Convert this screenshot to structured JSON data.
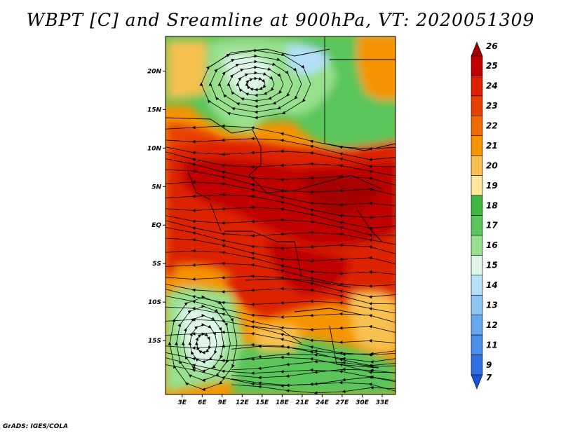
{
  "title": "WBPT [C] and Sreamline at 900hPa, VT: 2020051309",
  "credit": "GrADS: IGES/COLA",
  "map": {
    "lat_range": [
      -22,
      24.5
    ],
    "lon_range": [
      0.5,
      35
    ],
    "lat_ticks": [
      {
        "lat": 20,
        "label": "20N"
      },
      {
        "lat": 15,
        "label": "15N"
      },
      {
        "lat": 10,
        "label": "10N"
      },
      {
        "lat": 5,
        "label": "5N"
      },
      {
        "lat": 0,
        "label": "EQ"
      },
      {
        "lat": -5,
        "label": "5S"
      },
      {
        "lat": -10,
        "label": "10S"
      },
      {
        "lat": -15,
        "label": "15S"
      }
    ],
    "lon_ticks": [
      {
        "lon": 3,
        "label": "3E"
      },
      {
        "lon": 6,
        "label": "6E"
      },
      {
        "lon": 9,
        "label": "9E"
      },
      {
        "lon": 12,
        "label": "12E"
      },
      {
        "lon": 15,
        "label": "15E"
      },
      {
        "lon": 18,
        "label": "18E"
      },
      {
        "lon": 21,
        "label": "21E"
      },
      {
        "lon": 24,
        "label": "24E"
      },
      {
        "lon": 27,
        "label": "27E"
      },
      {
        "lon": 30,
        "label": "30E"
      },
      {
        "lon": 33,
        "label": "33E"
      }
    ]
  },
  "colorbar": {
    "levels": [
      {
        "label": "26",
        "color": "#a50000"
      },
      {
        "label": "25",
        "color": "#c00000"
      },
      {
        "label": "24",
        "color": "#dd2000"
      },
      {
        "label": "23",
        "color": "#e84000"
      },
      {
        "label": "22",
        "color": "#ef6a00"
      },
      {
        "label": "21",
        "color": "#f59400"
      },
      {
        "label": "20",
        "color": "#f8c050"
      },
      {
        "label": "19",
        "color": "#fce69a"
      },
      {
        "label": "18",
        "color": "#3eb53e"
      },
      {
        "label": "17",
        "color": "#5ac55a"
      },
      {
        "label": "16",
        "color": "#98e08e"
      },
      {
        "label": "15",
        "color": "#ddf6e8"
      },
      {
        "label": "14",
        "color": "#b4e0f8"
      },
      {
        "label": "13",
        "color": "#8cc4f2"
      },
      {
        "label": "12",
        "color": "#66a8ee"
      },
      {
        "label": "11",
        "color": "#4a8eea"
      },
      {
        "label": "9",
        "color": "#3070e0"
      },
      {
        "label": "7",
        "color": "#1a54d6"
      }
    ]
  }
}
